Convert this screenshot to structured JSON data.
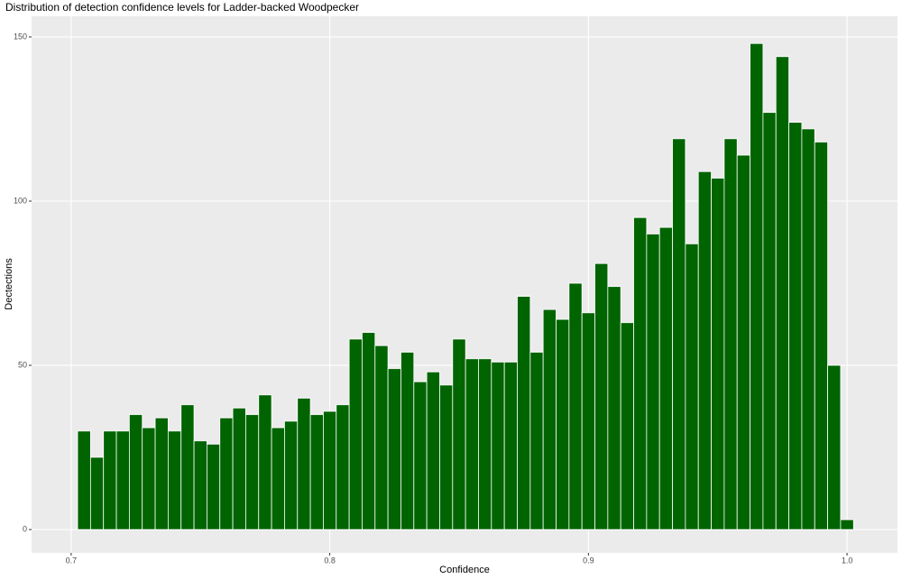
{
  "chart_data": {
    "type": "histogram",
    "title": "Distribution of detection confidence levels for Ladder-backed Woodpecker",
    "x_label": "Confidence",
    "y_label": "Dectections",
    "color": "#006400",
    "bins": [
      0.7025,
      0.7075,
      0.7125,
      0.7175,
      0.7225,
      0.7275,
      0.7325,
      0.7375,
      0.7425,
      0.7475,
      0.7525,
      0.7575,
      0.7625,
      0.7675,
      0.7725,
      0.7775,
      0.7825,
      0.7875,
      0.7925,
      0.7975,
      0.8025,
      0.8075,
      0.8125,
      0.8175,
      0.8225,
      0.8275,
      0.8325,
      0.8375,
      0.8425,
      0.8475,
      0.8525,
      0.8575,
      0.8625,
      0.8675,
      0.8725,
      0.8775,
      0.8825,
      0.8875,
      0.8925,
      0.8975,
      0.9025,
      0.9075,
      0.9125,
      0.9175,
      0.9225,
      0.9275,
      0.9325,
      0.9375,
      0.9425,
      0.9475,
      0.9525,
      0.9575,
      0.9625,
      0.9675,
      0.9725,
      0.9775,
      0.9825,
      0.9875,
      0.9925,
      0.9975,
      1.0025
    ],
    "values": [
      30,
      22,
      30,
      30,
      35,
      31,
      34,
      30,
      38,
      27,
      26,
      34,
      37,
      35,
      41,
      31,
      33,
      40,
      35,
      36,
      38,
      58,
      60,
      56,
      49,
      54,
      45,
      48,
      44,
      58,
      52,
      52,
      51,
      51,
      71,
      54,
      67,
      64,
      75,
      66,
      81,
      74,
      63,
      95,
      90,
      92,
      119,
      87,
      109,
      107,
      119,
      114,
      148,
      127,
      144,
      124,
      122,
      118,
      50,
      3
    ],
    "xlim": [
      0.6847,
      1.0195
    ],
    "ylim": [
      -7.1,
      156.3
    ],
    "xticks": [
      0.7,
      0.8,
      0.9,
      {
        "value": 1,
        "label": "1.0"
      }
    ],
    "yticks": [
      0,
      50,
      100,
      150
    ],
    "grid": true
  }
}
